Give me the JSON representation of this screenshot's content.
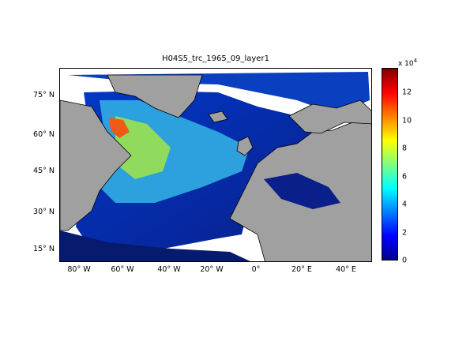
{
  "title": "H04S5_trc_1965_09_layer1",
  "y_ticks": [
    "75° N",
    "60° N",
    "45° N",
    "30° N",
    "15° N"
  ],
  "x_ticks": [
    "80° W",
    "60° W",
    "40° W",
    "20° W",
    "0°",
    "20° E",
    "40° E"
  ],
  "colorbar": {
    "multiplier_base": "x 10",
    "multiplier_exp": "4",
    "ticks": [
      "12",
      "10",
      "8",
      "6",
      "4",
      "2",
      "0"
    ],
    "range": [
      0,
      13.5
    ]
  },
  "colors": {
    "land": "#a0a0a0",
    "low": "#00008f",
    "high": "#800000"
  }
}
